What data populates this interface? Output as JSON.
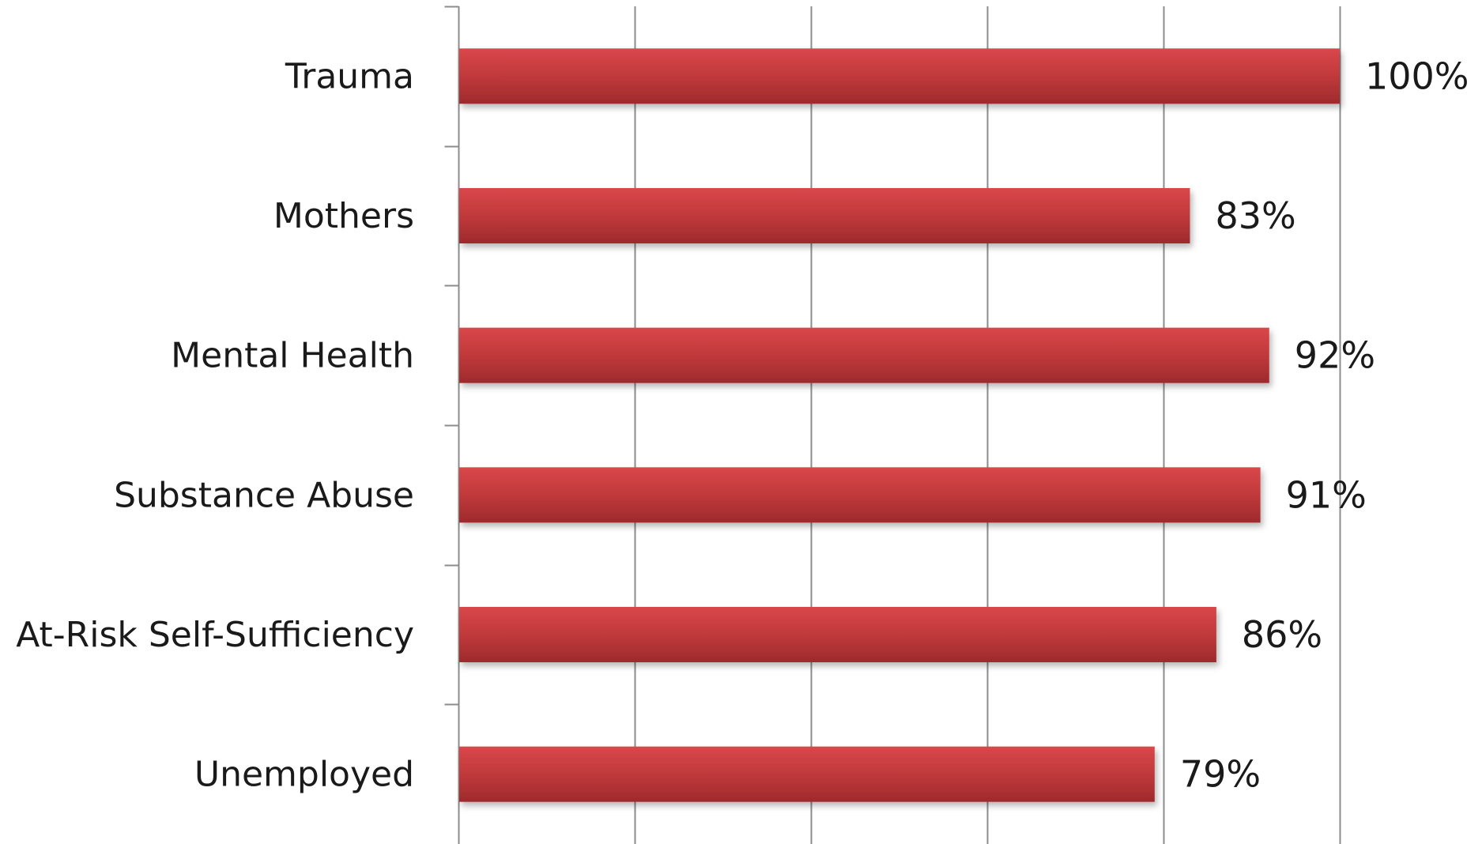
{
  "chart_data": {
    "type": "bar",
    "orientation": "horizontal",
    "title": "",
    "xlabel": "",
    "ylabel": "",
    "categories": [
      "Trauma",
      "Mothers",
      "Mental Health",
      "Substance Abuse",
      "At-Risk Self-Sufficiency",
      "Unemployed"
    ],
    "values": [
      100,
      83,
      92,
      91,
      86,
      79
    ],
    "value_labels": [
      "100%",
      "83%",
      "92%",
      "91%",
      "86%",
      "79%"
    ],
    "xlim": [
      0,
      100
    ],
    "grid": true,
    "legend": "none",
    "colors": {
      "bar": "#c0393b",
      "bar_light": "#d9474a",
      "bar_dark": "#9e2a2c",
      "grid": "#8c8c8c",
      "axis": "#8c8c8c",
      "text": "#1a1a1a"
    }
  }
}
